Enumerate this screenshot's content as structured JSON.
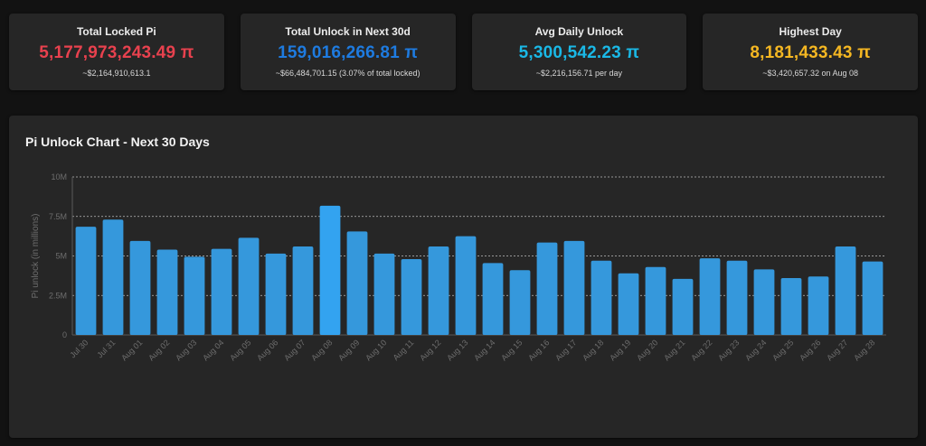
{
  "cards": [
    {
      "title": "Total Locked Pi",
      "value": "5,177,973,243.49 π",
      "sub": "~$2,164,910,613.1",
      "color": "#e8414e"
    },
    {
      "title": "Total Unlock in Next 30d",
      "value": "159,016,266.81 π",
      "sub": "~$66,484,701.15 (3.07% of total locked)",
      "color": "#1e7be0"
    },
    {
      "title": "Avg Daily Unlock",
      "value": "5,300,542.23 π",
      "sub": "~$2,216,156.71 per day",
      "color": "#1ab8e6"
    },
    {
      "title": "Highest Day",
      "value": "8,181,433.43 π",
      "sub": "~$3,420,657.32 on Aug 08",
      "color": "#f5b722"
    }
  ],
  "chart_title": "Pi Unlock Chart - Next 30 Days",
  "chart_data": {
    "type": "bar",
    "title": "Pi Unlock Chart - Next 30 Days",
    "xlabel": "",
    "ylabel": "Pi unlock (in millions)",
    "ylim": [
      0,
      10
    ],
    "yticks": [
      "0",
      "2.5M",
      "5M",
      "7.5M",
      "10M"
    ],
    "ytick_values": [
      0,
      2.5,
      5,
      7.5,
      10
    ],
    "grid": true,
    "bar_color": "#3598dc",
    "highlight_color": "#33a3f0",
    "highlight_index": 9,
    "categories": [
      "Jul 30",
      "Jul 31",
      "Aug 01",
      "Aug 02",
      "Aug 03",
      "Aug 04",
      "Aug 05",
      "Aug 06",
      "Aug 07",
      "Aug 08",
      "Aug 09",
      "Aug 10",
      "Aug 11",
      "Aug 12",
      "Aug 13",
      "Aug 14",
      "Aug 15",
      "Aug 16",
      "Aug 17",
      "Aug 18",
      "Aug 19",
      "Aug 20",
      "Aug 21",
      "Aug 22",
      "Aug 23",
      "Aug 24",
      "Aug 25",
      "Aug 26",
      "Aug 27",
      "Aug 28"
    ],
    "values": [
      6.85,
      7.3,
      5.95,
      5.4,
      4.95,
      5.45,
      6.15,
      5.15,
      5.6,
      8.18,
      6.55,
      5.15,
      4.8,
      5.6,
      6.25,
      4.55,
      4.1,
      5.85,
      5.95,
      4.7,
      3.9,
      4.3,
      3.55,
      4.85,
      4.7,
      4.15,
      3.6,
      3.7,
      5.6,
      4.65
    ]
  }
}
